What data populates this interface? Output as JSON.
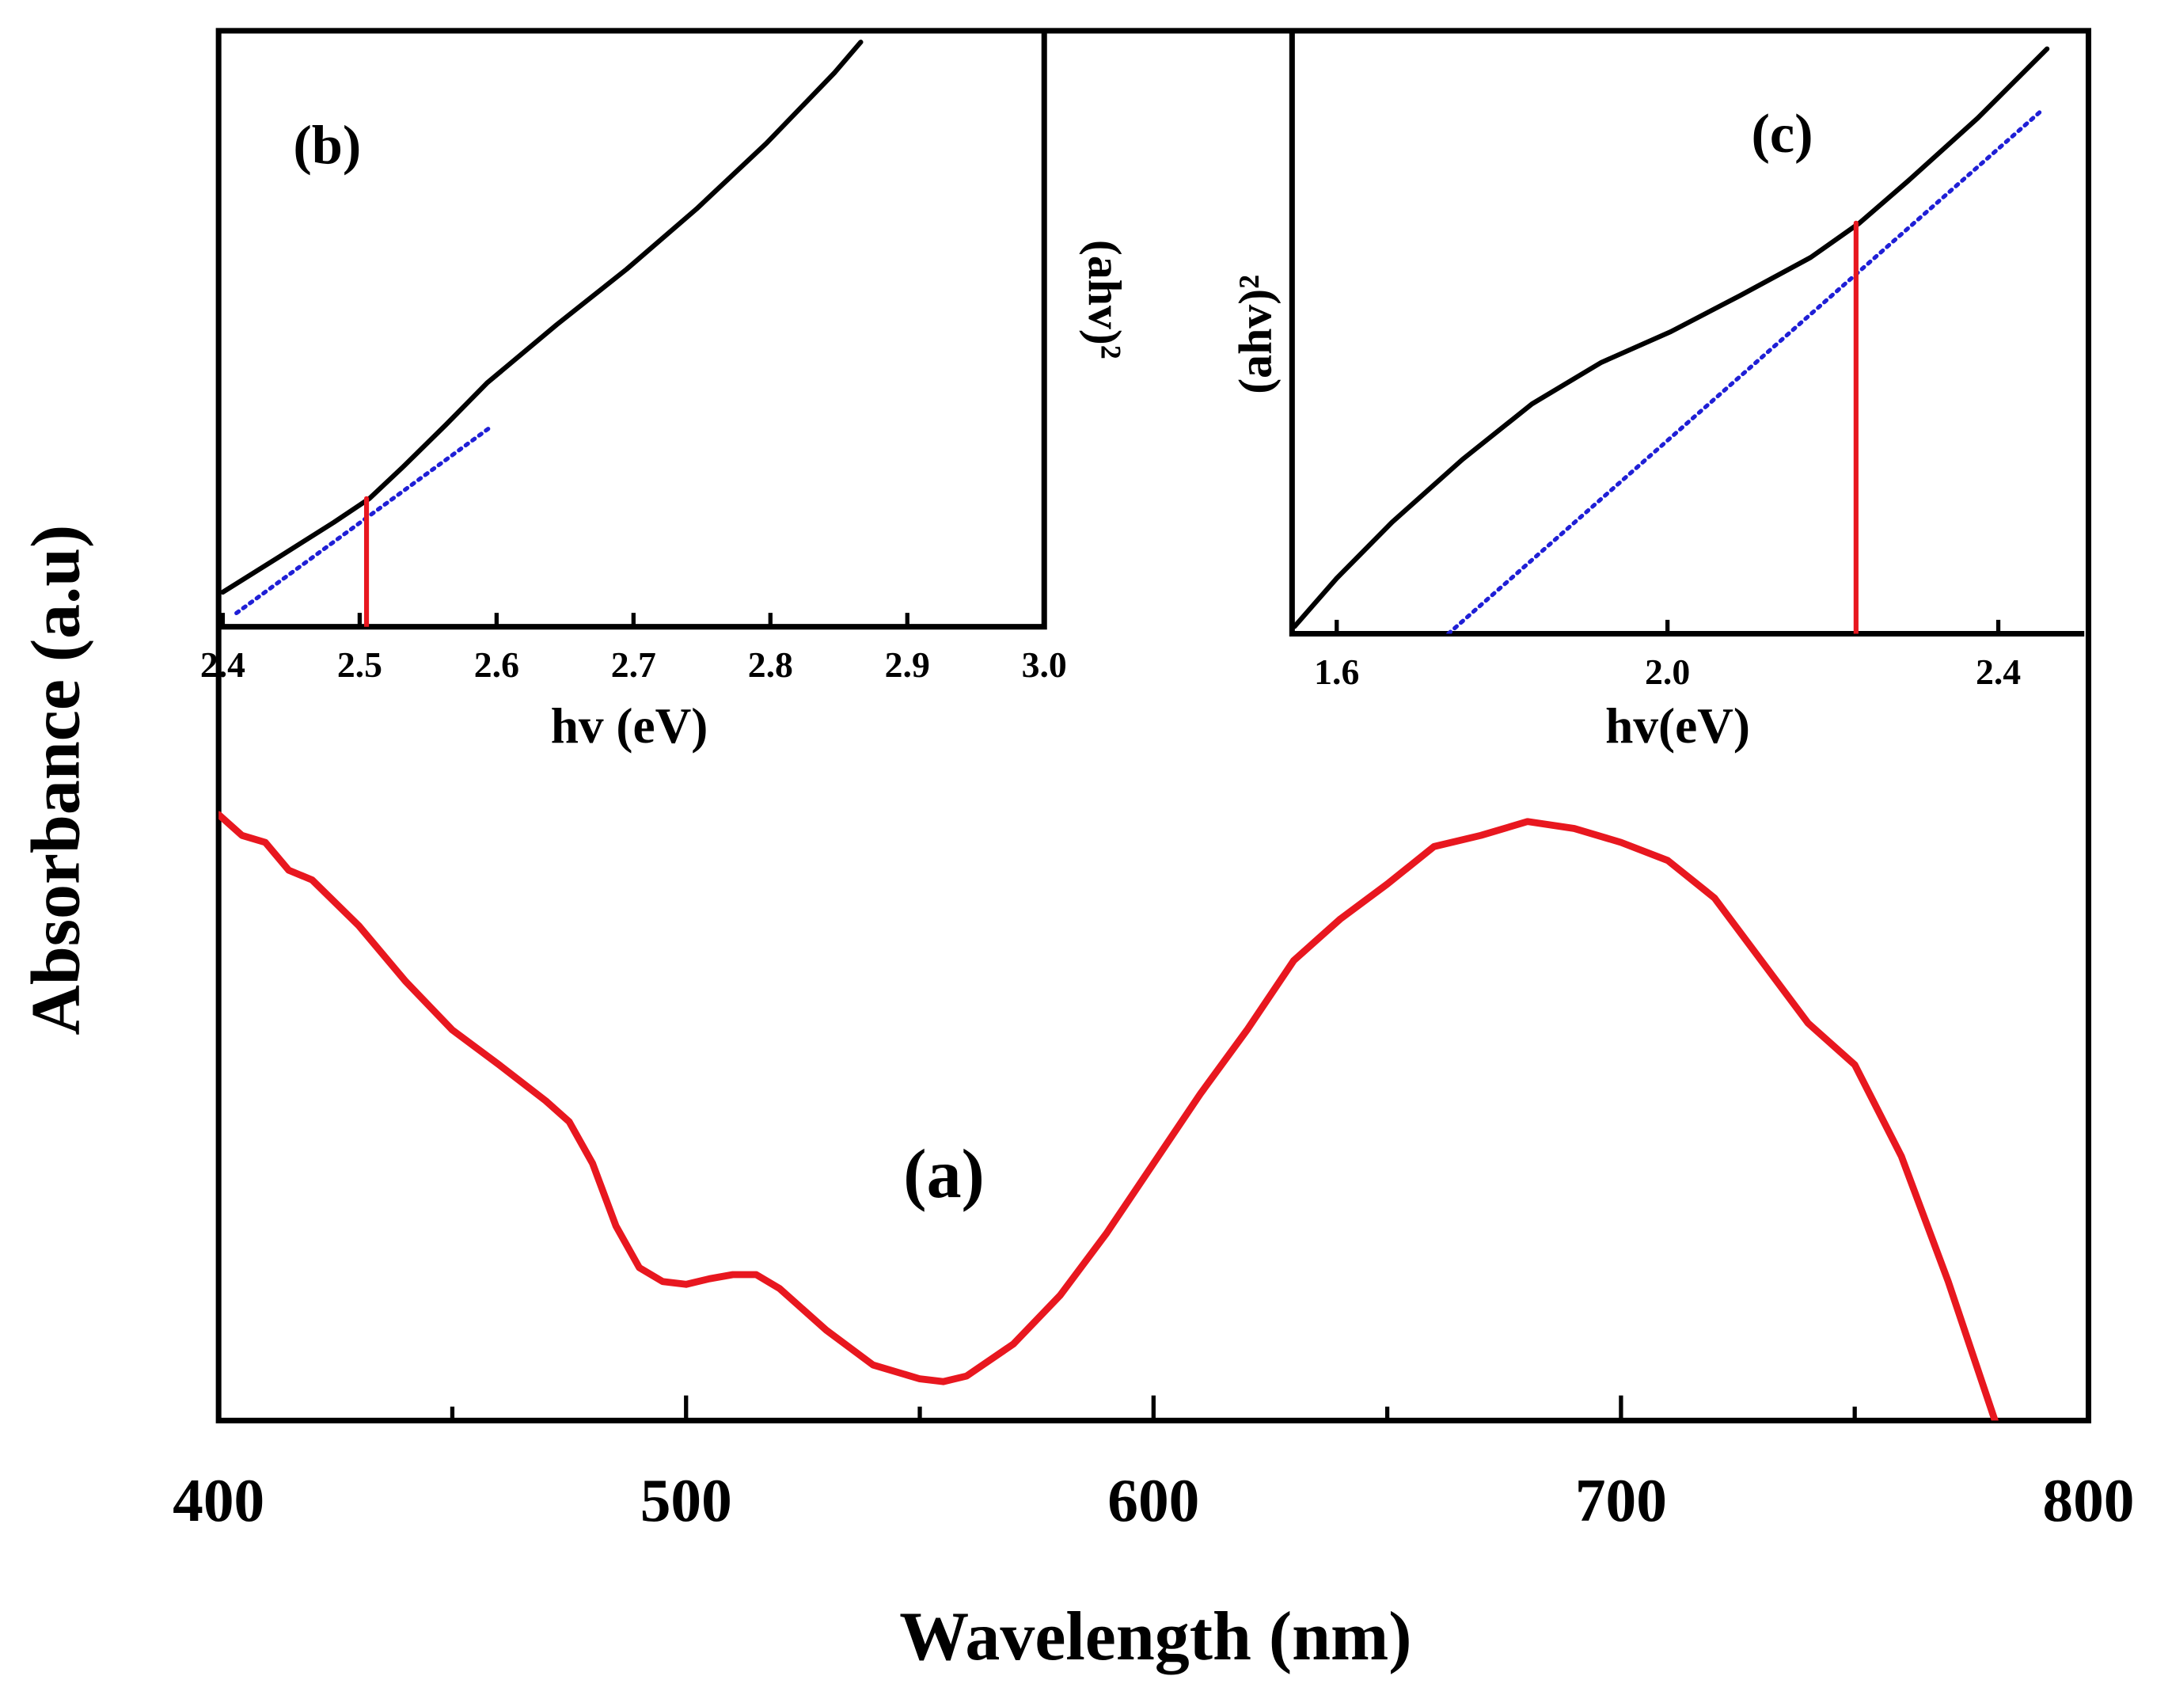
{
  "chart_data": [
    {
      "type": "line",
      "x_label": "Wavelength (nm)",
      "y_label": "Absorbance (a.u)",
      "annotation": "(a)",
      "xlim": [
        400,
        800
      ],
      "xticks": [
        400,
        500,
        600,
        700,
        800
      ],
      "xminor_ticks": [
        450,
        550,
        650,
        750
      ],
      "ylim": [
        0,
        1
      ],
      "series": [
        {
          "color": "#e8171f",
          "style": "solid",
          "x": [
            400,
            405,
            410,
            415,
            420,
            430,
            440,
            450,
            460,
            470,
            475,
            480,
            485,
            490,
            495,
            500,
            505,
            510,
            515,
            520,
            530,
            540,
            550,
            555,
            560,
            570,
            580,
            590,
            600,
            610,
            620,
            630,
            640,
            650,
            660,
            670,
            680,
            690,
            700,
            710,
            720,
            730,
            740,
            750,
            760,
            770,
            775,
            780
          ],
          "values": [
            0.436,
            0.421,
            0.416,
            0.396,
            0.389,
            0.356,
            0.316,
            0.281,
            0.256,
            0.23,
            0.215,
            0.185,
            0.14,
            0.11,
            0.1,
            0.098,
            0.102,
            0.105,
            0.105,
            0.095,
            0.065,
            0.04,
            0.03,
            0.028,
            0.032,
            0.055,
            0.09,
            0.135,
            0.185,
            0.235,
            0.281,
            0.331,
            0.361,
            0.386,
            0.413,
            0.421,
            0.431,
            0.426,
            0.416,
            0.403,
            0.376,
            0.331,
            0.286,
            0.256,
            0.19,
            0.1,
            0.05,
            0
          ]
        }
      ]
    },
    {
      "type": "line",
      "x_label": "hv (eV)",
      "y_label": "(ahv)²",
      "annotation": "(b)",
      "xlim": [
        2.4,
        3.0
      ],
      "xticks": [
        2.4,
        2.5,
        2.6,
        2.7,
        2.8,
        2.9,
        {
          "value": 3.0,
          "label": "3.0"
        }
      ],
      "ylim": [
        0,
        1
      ],
      "series": [
        {
          "color": "#000000",
          "style": "solid",
          "x": [
            2.4,
            2.441,
            2.481,
            2.507,
            2.532,
            2.563,
            2.593,
            2.644,
            2.695,
            2.746,
            2.797,
            2.847,
            2.866
          ],
          "values": [
            0.058,
            0.117,
            0.175,
            0.215,
            0.269,
            0.339,
            0.409,
            0.507,
            0.6,
            0.701,
            0.811,
            0.93,
            0.981
          ]
        },
        {
          "color": "#1f1fd6",
          "style": "dotted",
          "x": [
            2.41,
            2.595
          ],
          "values": [
            0.023,
            0.334
          ]
        },
        {
          "color": "#e8171f",
          "style": "solid",
          "x": [
            2.505,
            2.505
          ],
          "values": [
            0,
            0.215
          ]
        }
      ]
    },
    {
      "type": "line",
      "x_label": "hv(eV)",
      "y_label": "(ahv)²",
      "annotation": "(c)",
      "xlim": [
        1.546,
        2.504
      ],
      "xticks": [
        1.6,
        {
          "value": 2.0,
          "label": "2.0"
        },
        2.4
      ],
      "ylim": [
        0,
        1
      ],
      "series": [
        {
          "color": "#000000",
          "style": "solid",
          "x": [
            1.549,
            1.6,
            1.667,
            1.752,
            1.836,
            1.92,
            2.004,
            2.088,
            2.173,
            2.232,
            2.291,
            2.375,
            2.459
          ],
          "values": [
            0.012,
            0.092,
            0.185,
            0.289,
            0.381,
            0.45,
            0.501,
            0.561,
            0.624,
            0.681,
            0.751,
            0.855,
            0.97
          ]
        },
        {
          "color": "#1f1fd6",
          "style": "dotted",
          "x": [
            1.735,
            2.451
          ],
          "values": [
            0,
            0.866
          ]
        },
        {
          "color": "#e8171f",
          "style": "solid",
          "x": [
            2.228,
            2.228
          ],
          "values": [
            0,
            0.681
          ]
        }
      ]
    }
  ]
}
